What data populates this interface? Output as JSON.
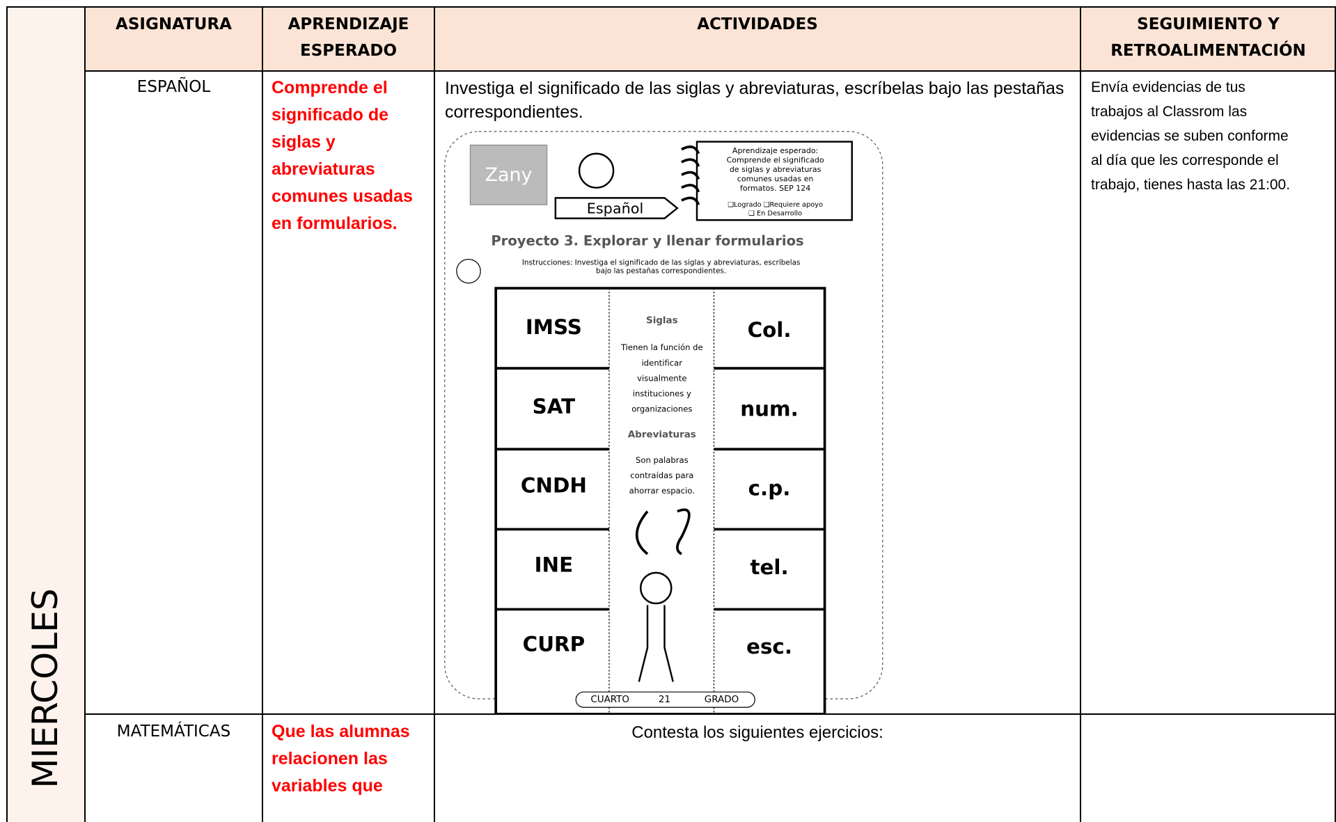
{
  "day": "MIERCOLES",
  "table": {
    "headers": [
      "ASIGNATURA",
      "APRENDIZAJE ESPERADO",
      "ACTIVIDADES",
      "SEGUIMIENTO Y RETROALIMENTACIÓN"
    ],
    "rows": [
      [
        "ESPAÑOL",
        "Comprende el significado de siglas y abreviaturas comunes usadas en formularios.",
        "Investiga el significado de las siglas y abreviaturas, escríbelas bajo las pestañas correspondientes.",
        "Envía evidencias de tus trabajos al Classrom las evidencias se suben conforme al día que les corresponde el trabajo, tienes hasta las 21:00."
      ],
      [
        "MATEMÁTICAS",
        "Que las alumnas relacionen las variables que",
        "Contesta los siguientes ejercicios:"
      ]
    ]
  },
  "worksheet": {
    "logo": "Zany",
    "subject": "Español",
    "goal": [
      "Aprendizaje esperado:",
      "Comprende el significado",
      "de siglas  y abreviaturas",
      "comunes usadas en",
      "formatos.  SEP 124"
    ],
    "status": [
      "❑Logrado ❑Requiere apoyo",
      "❑ En Desarrollo"
    ],
    "title": "Proyecto 3. Explorar y llenar formularios",
    "instructions": [
      "Instrucciones: Investiga el significado de las siglas y abreviaturas, escríbelas",
      "bajo las pestañas correspondientes."
    ],
    "siglas": [
      "IMSS",
      "SAT",
      "CNDH",
      "INE",
      "CURP"
    ],
    "abreviaturas": [
      "Col.",
      "num.",
      "c.p.",
      "tel.",
      "esc."
    ],
    "siglas_heading": "Siglas",
    "siglas_text": [
      "Tienen la función de",
      "identificar",
      "visualmente",
      "instituciones y",
      "organizaciones"
    ],
    "abreviaturas_heading": "Abreviaturas",
    "abreviaturas_text": [
      "Son palabras",
      "contraídas para",
      "ahorrar espacio."
    ],
    "footer": [
      "CUARTO",
      "21",
      "GRADO"
    ]
  }
}
